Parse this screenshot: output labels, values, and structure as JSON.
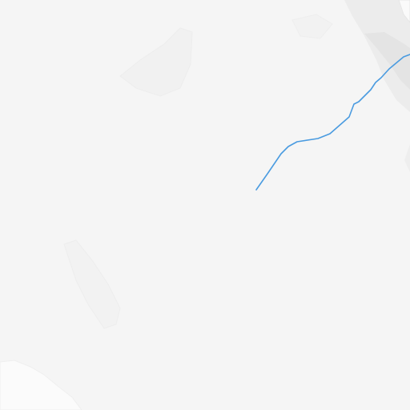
{
  "map": {
    "colors": {
      "land": "#f5f5f5",
      "terrain_light": "#f3f3f3",
      "terrain_shade": "#e8e8e8",
      "urban_area": "#e4e4e4",
      "snow_white": "#fbfbfb",
      "waterway": "#4a9be0"
    },
    "features": {
      "waterway": {
        "kind": "river-stream",
        "label": ""
      },
      "urban_area": {
        "kind": "built-up-area",
        "label": ""
      },
      "terrain": {
        "kind": "hillshade",
        "label": ""
      }
    }
  }
}
